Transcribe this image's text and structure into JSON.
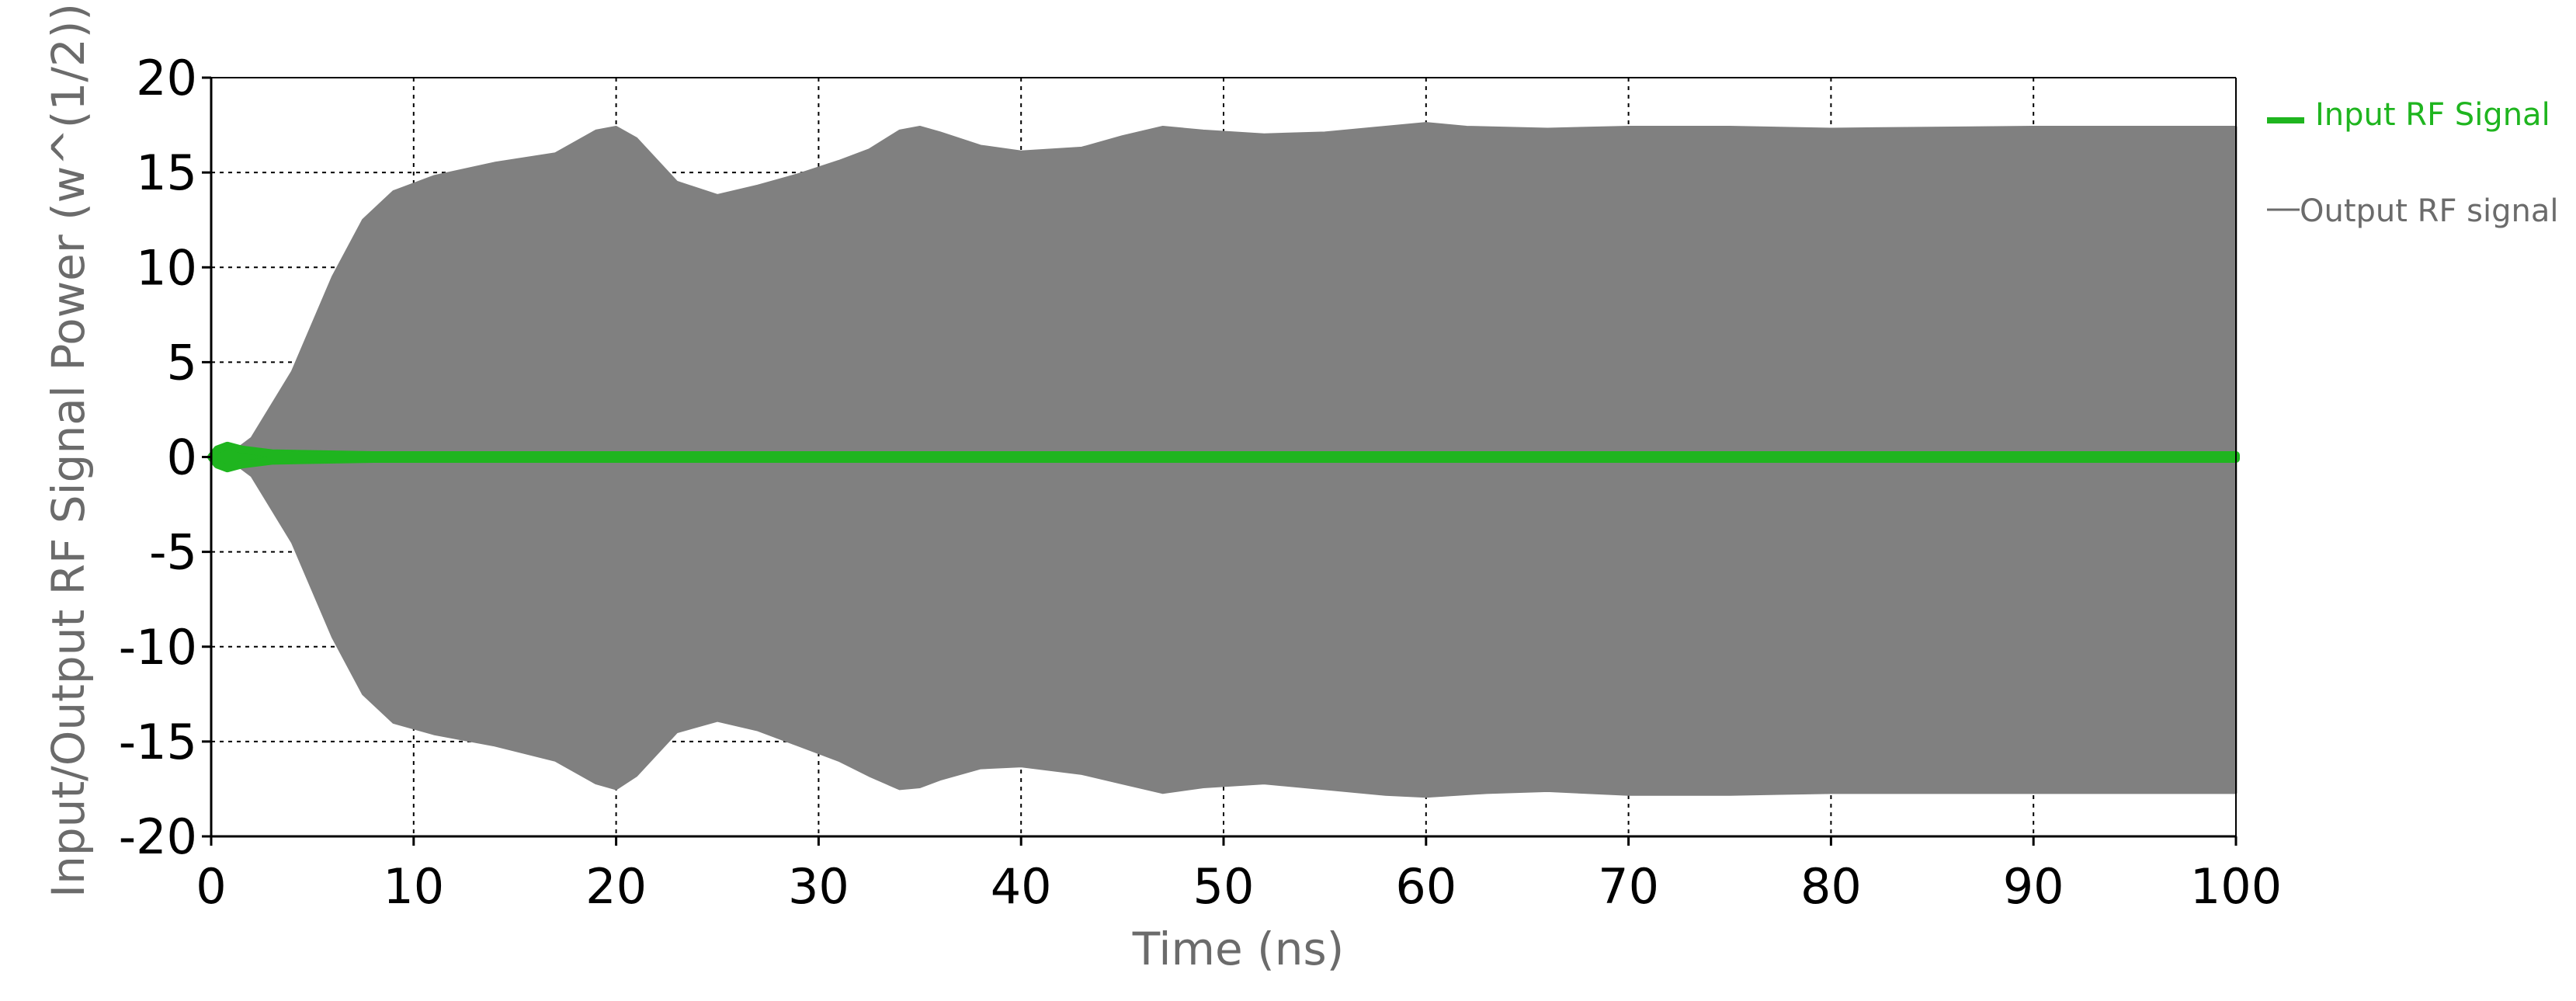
{
  "chart_data": {
    "type": "area",
    "xlabel": "Time (ns)",
    "ylabel": "Input/Output RF Signal Power (w^(1/2))",
    "xlim": [
      0,
      100
    ],
    "ylim": [
      -20,
      20
    ],
    "xticks": [
      0,
      10,
      20,
      30,
      40,
      50,
      60,
      70,
      80,
      90,
      100
    ],
    "yticks": [
      -20,
      -15,
      -10,
      -5,
      0,
      5,
      10,
      15,
      20
    ],
    "grid": true,
    "legend_position": "right",
    "series": [
      {
        "name": "Input RF Signal",
        "color": "#1fb51f",
        "upper": [
          [
            0,
            0
          ],
          [
            0.3,
            0.4
          ],
          [
            0.8,
            0.6
          ],
          [
            1.5,
            0.4
          ],
          [
            3,
            0.2
          ],
          [
            8,
            0.1
          ],
          [
            100,
            0.1
          ]
        ],
        "lower": [
          [
            0,
            0
          ],
          [
            0.3,
            -0.4
          ],
          [
            0.8,
            -0.6
          ],
          [
            1.5,
            -0.4
          ],
          [
            3,
            -0.2
          ],
          [
            8,
            -0.1
          ],
          [
            100,
            -0.1
          ]
        ]
      },
      {
        "name": "Output RF signal",
        "color": "#808080",
        "upper": [
          [
            0,
            0
          ],
          [
            1,
            0.2
          ],
          [
            2,
            1.0
          ],
          [
            4,
            4.5
          ],
          [
            6,
            9.5
          ],
          [
            7.5,
            12.5
          ],
          [
            9,
            14.0
          ],
          [
            11,
            14.8
          ],
          [
            14,
            15.5
          ],
          [
            17,
            16.0
          ],
          [
            19,
            17.2
          ],
          [
            20,
            17.4
          ],
          [
            21,
            16.8
          ],
          [
            23,
            14.5
          ],
          [
            25,
            13.8
          ],
          [
            27,
            14.3
          ],
          [
            29,
            14.9
          ],
          [
            31,
            15.6
          ],
          [
            32.5,
            16.2
          ],
          [
            34,
            17.2
          ],
          [
            35,
            17.4
          ],
          [
            36,
            17.1
          ],
          [
            38,
            16.4
          ],
          [
            40,
            16.1
          ],
          [
            43,
            16.3
          ],
          [
            45,
            16.9
          ],
          [
            47,
            17.4
          ],
          [
            49,
            17.2
          ],
          [
            52,
            17.0
          ],
          [
            55,
            17.1
          ],
          [
            58,
            17.4
          ],
          [
            60,
            17.6
          ],
          [
            62,
            17.4
          ],
          [
            66,
            17.3
          ],
          [
            70,
            17.4
          ],
          [
            75,
            17.4
          ],
          [
            80,
            17.3
          ],
          [
            90,
            17.4
          ],
          [
            100,
            17.4
          ]
        ],
        "lower": [
          [
            0,
            0
          ],
          [
            1,
            -0.2
          ],
          [
            2,
            -1.0
          ],
          [
            4,
            -4.5
          ],
          [
            6,
            -9.5
          ],
          [
            7.5,
            -12.5
          ],
          [
            9,
            -14.0
          ],
          [
            11,
            -14.6
          ],
          [
            14,
            -15.2
          ],
          [
            17,
            -16.0
          ],
          [
            19,
            -17.2
          ],
          [
            20,
            -17.5
          ],
          [
            21,
            -16.8
          ],
          [
            23,
            -14.5
          ],
          [
            25,
            -13.9
          ],
          [
            27,
            -14.4
          ],
          [
            29,
            -15.2
          ],
          [
            31,
            -16.0
          ],
          [
            32.5,
            -16.8
          ],
          [
            34,
            -17.5
          ],
          [
            35,
            -17.4
          ],
          [
            36,
            -17.0
          ],
          [
            38,
            -16.4
          ],
          [
            40,
            -16.3
          ],
          [
            43,
            -16.7
          ],
          [
            45,
            -17.2
          ],
          [
            47,
            -17.7
          ],
          [
            49,
            -17.4
          ],
          [
            52,
            -17.2
          ],
          [
            55,
            -17.5
          ],
          [
            58,
            -17.8
          ],
          [
            60,
            -17.9
          ],
          [
            63,
            -17.7
          ],
          [
            66,
            -17.6
          ],
          [
            70,
            -17.8
          ],
          [
            75,
            -17.8
          ],
          [
            80,
            -17.7
          ],
          [
            90,
            -17.7
          ],
          [
            100,
            -17.7
          ]
        ]
      }
    ]
  }
}
